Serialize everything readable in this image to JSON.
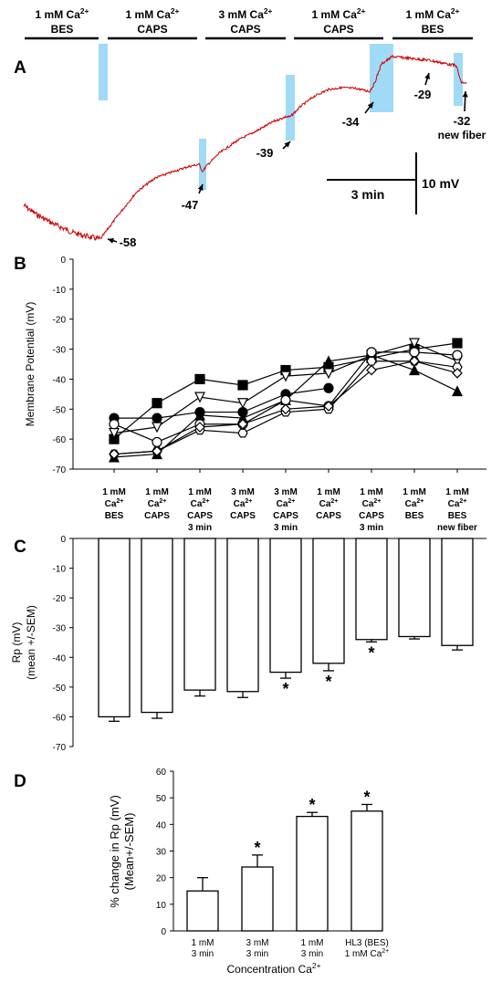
{
  "panels": {
    "a": {
      "letter": "A",
      "segments": [
        {
          "l1": "1 mM Ca",
          "sup": "2+",
          "l2": "BES"
        },
        {
          "l1": "1 mM Ca",
          "sup": "2+",
          "l2": "CAPS"
        },
        {
          "l1": "3 mM Ca",
          "sup": "2+",
          "l2": "CAPS"
        },
        {
          "l1": "1 mM Ca",
          "sup": "2+",
          "l2": "CAPS"
        },
        {
          "l1": "1 mM Ca",
          "sup": "2+",
          "l2": "BES"
        }
      ],
      "annotations": [
        "-58",
        "-47",
        "-39",
        "-34",
        "-29",
        "-32"
      ],
      "new_fiber": "new fiber",
      "scale_time": "3 min",
      "scale_voltage": "10 mV",
      "trace_color": "#cc0000",
      "highlight_color": "#8fd3f4"
    },
    "b": {
      "letter": "B"
    },
    "c": {
      "letter": "C"
    },
    "d": {
      "letter": "D"
    }
  },
  "chart_data": [
    {
      "type": "line",
      "panel": "B",
      "ylabel": "Membrane Potential (mV)",
      "ylim": [
        -70,
        0
      ],
      "yticks": [
        0,
        -10,
        -20,
        -30,
        -40,
        -50,
        -60,
        -70
      ],
      "categories": [
        {
          "lines": [
            "1 mM",
            "Ca",
            "BES"
          ],
          "sup": "2+"
        },
        {
          "lines": [
            "1 mM",
            "Ca",
            "CAPS"
          ],
          "sup": "2+"
        },
        {
          "lines": [
            "1 mM",
            "Ca",
            "CAPS",
            "3 min"
          ],
          "sup": "2+"
        },
        {
          "lines": [
            "3 mM",
            "Ca",
            "CAPS"
          ],
          "sup": "2+"
        },
        {
          "lines": [
            "3 mM",
            "Ca",
            "CAPS",
            "3 min"
          ],
          "sup": "2+"
        },
        {
          "lines": [
            "1 mM",
            "Ca",
            "CAPS"
          ],
          "sup": "2+"
        },
        {
          "lines": [
            "1 mM",
            "Ca",
            "CAPS",
            "3 min"
          ],
          "sup": "2+"
        },
        {
          "lines": [
            "1 mM",
            "Ca",
            "BES"
          ],
          "sup": "2+"
        },
        {
          "lines": [
            "1 mM",
            "Ca",
            "BES",
            "new fiber"
          ],
          "sup": "2+"
        }
      ],
      "series": [
        {
          "marker": "filled-square",
          "values": [
            -60,
            -48,
            -40,
            -42,
            -37,
            -36,
            -33,
            -30,
            -28
          ]
        },
        {
          "marker": "open-triangle-down",
          "values": [
            -58,
            -56,
            -46,
            -48,
            -39,
            -38,
            -32,
            -28,
            -34
          ]
        },
        {
          "marker": "filled-circle",
          "values": [
            -53,
            -53,
            -51,
            -51,
            -45,
            -43,
            null,
            null,
            null
          ]
        },
        {
          "marker": "filled-triangle",
          "values": [
            -66,
            -65,
            -52,
            -53,
            -47,
            -34,
            -32,
            -37,
            -44
          ]
        },
        {
          "marker": "open-circle",
          "values": [
            -55,
            -61,
            -55,
            -55,
            -47,
            -49,
            -31,
            -31,
            -32
          ]
        },
        {
          "marker": "open-hexagon",
          "values": [
            -65,
            -64,
            -57,
            -58,
            -51,
            -50,
            -34,
            -34,
            -36
          ]
        },
        {
          "marker": "open-diamond",
          "values": [
            -65,
            -64,
            -56,
            -55,
            -50,
            -49,
            -37,
            -34,
            -38
          ]
        }
      ]
    },
    {
      "type": "bar",
      "panel": "C",
      "ylabel_line1": "Rp (mV)",
      "ylabel_line2": "(mean +/-SEM)",
      "ylim": [
        -70,
        0
      ],
      "yticks": [
        0,
        -10,
        -20,
        -30,
        -40,
        -50,
        -60,
        -70
      ],
      "values": [
        -60,
        -58.5,
        -51,
        -51.5,
        -45,
        -42,
        -34,
        -33,
        -36
      ],
      "errors": [
        1.5,
        2,
        2,
        2,
        2,
        2.5,
        0.8,
        0.8,
        1.5
      ],
      "significant": [
        false,
        false,
        false,
        false,
        true,
        true,
        true,
        false,
        false
      ],
      "star": "*"
    },
    {
      "type": "bar",
      "panel": "D",
      "ylabel_line1": "% change in Rp (mV)",
      "ylabel_line2": "(Mean+/-SEM)",
      "xlabel": "Concentration Ca",
      "xlabel_sup": "2+",
      "ylim": [
        0,
        60
      ],
      "yticks": [
        0,
        10,
        20,
        30,
        40,
        50,
        60
      ],
      "categories": [
        {
          "lines": [
            "1 mM",
            "3 min"
          ],
          "sup": ""
        },
        {
          "lines": [
            "3 mM",
            "3 min"
          ],
          "sup": ""
        },
        {
          "lines": [
            "1 mM",
            "3 min"
          ],
          "sup": ""
        },
        {
          "lines": [
            "HL3 (BES)",
            "1 mM Ca"
          ],
          "sup": "2+"
        }
      ],
      "values": [
        15,
        24,
        43,
        45
      ],
      "errors": [
        5,
        4.5,
        1.5,
        2.5
      ],
      "significant": [
        false,
        true,
        true,
        true
      ],
      "star": "*"
    }
  ]
}
